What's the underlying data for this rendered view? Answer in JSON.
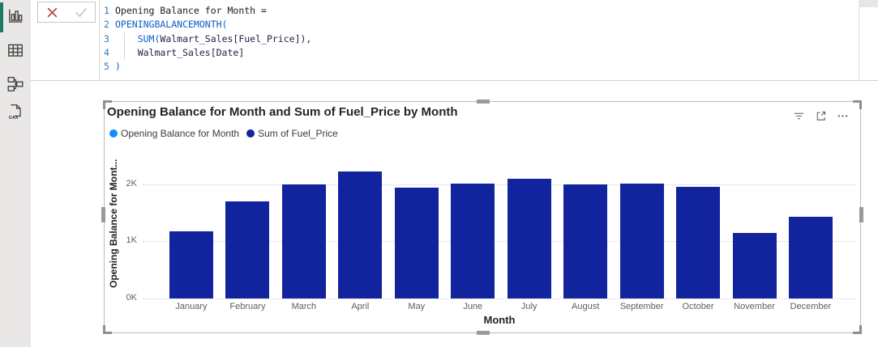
{
  "sidebar": {
    "active_indicator_color": "#1f7a66",
    "items": [
      {
        "name": "report-view",
        "icon": "bar-chart-icon",
        "active": true
      },
      {
        "name": "table-view",
        "icon": "table-grid-icon",
        "active": false
      },
      {
        "name": "model-view",
        "icon": "model-relationships-icon",
        "active": false
      },
      {
        "name": "dax-query-view",
        "icon": "dax-document-icon",
        "active": false
      }
    ]
  },
  "formula_bar": {
    "cancel_icon": "cancel-x-icon",
    "commit_icon": "checkmark-icon",
    "colors": {
      "function": "#0b5ec9",
      "reference": "#1c2440",
      "plain": "#1a1a1a",
      "line_number": "#2f7bbf"
    },
    "lines": [
      {
        "num": "1",
        "indent": false,
        "segments": [
          {
            "text": "Opening Balance for Month =",
            "type": "plain"
          }
        ]
      },
      {
        "num": "2",
        "indent": false,
        "segments": [
          {
            "text": "OPENINGBALANCEMONTH(",
            "type": "function"
          }
        ]
      },
      {
        "num": "3",
        "indent": true,
        "segments": [
          {
            "text": "    ",
            "type": "plain"
          },
          {
            "text": "SUM(",
            "type": "function"
          },
          {
            "text": "Walmart_Sales[Fuel_Price]),",
            "type": "reference"
          }
        ]
      },
      {
        "num": "4",
        "indent": true,
        "segments": [
          {
            "text": "    ",
            "type": "plain"
          },
          {
            "text": "Walmart_Sales[Date]",
            "type": "reference"
          }
        ]
      },
      {
        "num": "5",
        "indent": false,
        "segments": [
          {
            "text": ")",
            "type": "function"
          }
        ]
      }
    ]
  },
  "visual": {
    "header_icons": [
      "filter-icon",
      "focus-mode-icon",
      "more-options-icon"
    ]
  },
  "chart_data": {
    "type": "bar",
    "title": "Opening Balance for Month and Sum of Fuel_Price by Month",
    "xlabel": "Month",
    "ylabel": "Opening Balance for Mont...",
    "categories": [
      "January",
      "February",
      "March",
      "April",
      "May",
      "June",
      "July",
      "August",
      "September",
      "October",
      "November",
      "December"
    ],
    "values": [
      1180,
      1700,
      2000,
      2230,
      1940,
      2010,
      2090,
      2000,
      2010,
      1960,
      1150,
      1430
    ],
    "bar_color": "#12239E",
    "ylim": [
      0,
      2450
    ],
    "yticks": [
      {
        "value": 0,
        "label": "0K"
      },
      {
        "value": 1000,
        "label": "1K"
      },
      {
        "value": 2000,
        "label": "2K"
      }
    ],
    "grid": "dotted-horizontal",
    "legend_position": "top-left",
    "legend": [
      {
        "label": "Opening Balance for Month",
        "color": "#118DFF"
      },
      {
        "label": "Sum of Fuel_Price",
        "color": "#12239E"
      }
    ]
  }
}
